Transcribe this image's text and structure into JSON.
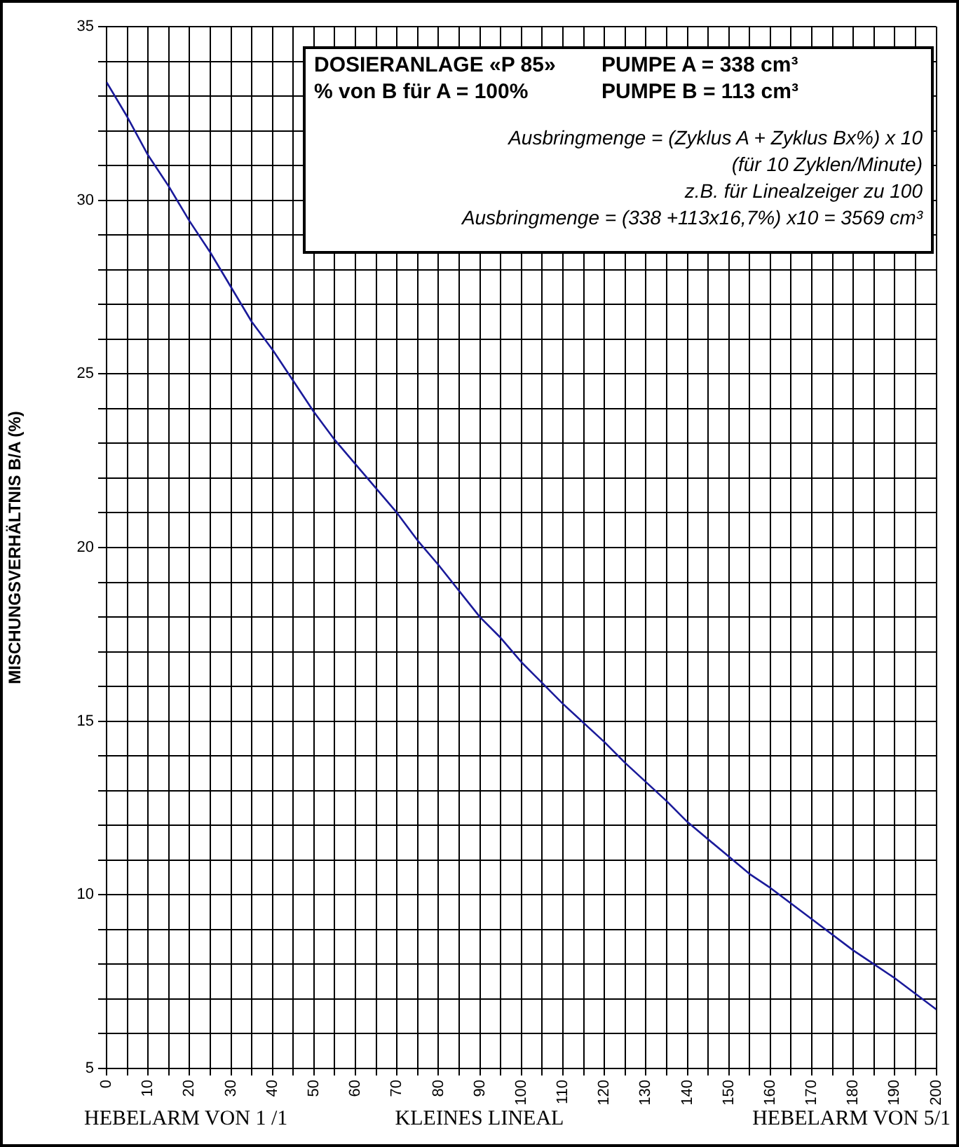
{
  "chart_data": {
    "type": "line",
    "ylabel": "MISCHUNGSVERHÄLTNIS B/A (%)",
    "annotations": [
      "DOSIERANLAGE «P 85»",
      "PUMPE A = 338 cm³",
      "% von B für A = 100%",
      "PUMPE B = 113 cm³",
      "Ausbringmenge = (Zyklus A + Zyklus Bx%) x 10",
      "(für 10 Zyklen/Minute)",
      "z.B. für Linealzeiger zu 100",
      "Ausbringmenge = (338 +113x16,7%) x10 = 3569 cm³",
      "HEBELARM VON 1 /1",
      "KLEINES LINEAL",
      "HEBELARM VON 5/1"
    ],
    "x": [
      0,
      5,
      10,
      15,
      20,
      25,
      30,
      35,
      40,
      45,
      50,
      55,
      60,
      70,
      75,
      80,
      90,
      95,
      100,
      105,
      110,
      120,
      125,
      135,
      140,
      150,
      155,
      160,
      170,
      180,
      185,
      190,
      200
    ],
    "series": [
      {
        "color": "#1a1a9a",
        "values": [
          33.4,
          32.4,
          31.3,
          30.4,
          29.4,
          28.5,
          27.5,
          26.5,
          25.7,
          24.8,
          23.9,
          23.1,
          22.4,
          21.0,
          20.2,
          19.5,
          18.0,
          17.4,
          16.7,
          16.1,
          15.5,
          14.4,
          13.8,
          12.7,
          12.1,
          11.1,
          10.6,
          10.2,
          9.3,
          8.4,
          8.0,
          7.6,
          6.7
        ]
      }
    ],
    "xlim": [
      0,
      200
    ],
    "xticks": [
      0,
      {
        "value": 5,
        "label": null
      },
      10,
      {
        "value": 15,
        "label": null
      },
      20,
      {
        "value": 25,
        "label": null
      },
      30,
      {
        "value": 35,
        "label": null
      },
      40,
      {
        "value": 45,
        "label": null
      },
      50,
      {
        "value": 55,
        "label": null
      },
      60,
      {
        "value": 65,
        "label": null
      },
      70,
      {
        "value": 75,
        "label": null
      },
      80,
      {
        "value": 85,
        "label": null
      },
      90,
      {
        "value": 95,
        "label": null
      },
      100,
      {
        "value": 105,
        "label": null
      },
      110,
      {
        "value": 115,
        "label": null
      },
      120,
      {
        "value": 125,
        "label": null
      },
      130,
      {
        "value": 135,
        "label": null
      },
      140,
      {
        "value": 145,
        "label": null
      },
      150,
      {
        "value": 155,
        "label": null
      },
      160,
      {
        "value": 165,
        "label": null
      },
      170,
      {
        "value": 175,
        "label": null
      },
      180,
      {
        "value": 185,
        "label": null
      },
      190,
      {
        "value": 195,
        "label": null
      },
      200
    ],
    "ylim": [
      5,
      35
    ],
    "yticks": [
      5,
      {
        "value": 6,
        "label": null
      },
      {
        "value": 7,
        "label": null
      },
      {
        "value": 8,
        "label": null
      },
      {
        "value": 9,
        "label": null
      },
      10,
      {
        "value": 11,
        "label": null
      },
      {
        "value": 12,
        "label": null
      },
      {
        "value": 13,
        "label": null
      },
      {
        "value": 14,
        "label": null
      },
      15,
      {
        "value": 16,
        "label": null
      },
      {
        "value": 17,
        "label": null
      },
      {
        "value": 18,
        "label": null
      },
      {
        "value": 19,
        "label": null
      },
      20,
      {
        "value": 21,
        "label": null
      },
      {
        "value": 22,
        "label": null
      },
      {
        "value": 23,
        "label": null
      },
      {
        "value": 24,
        "label": null
      },
      25,
      {
        "value": 26,
        "label": null
      },
      {
        "value": 27,
        "label": null
      },
      {
        "value": 28,
        "label": null
      },
      {
        "value": 29,
        "label": null
      },
      30,
      {
        "value": 31,
        "label": null
      },
      {
        "value": 32,
        "label": null
      },
      {
        "value": 33,
        "label": null
      },
      {
        "value": 34,
        "label": null
      },
      35
    ],
    "grid": true,
    "legend": false,
    "marker": "none",
    "line_style": "solid"
  }
}
